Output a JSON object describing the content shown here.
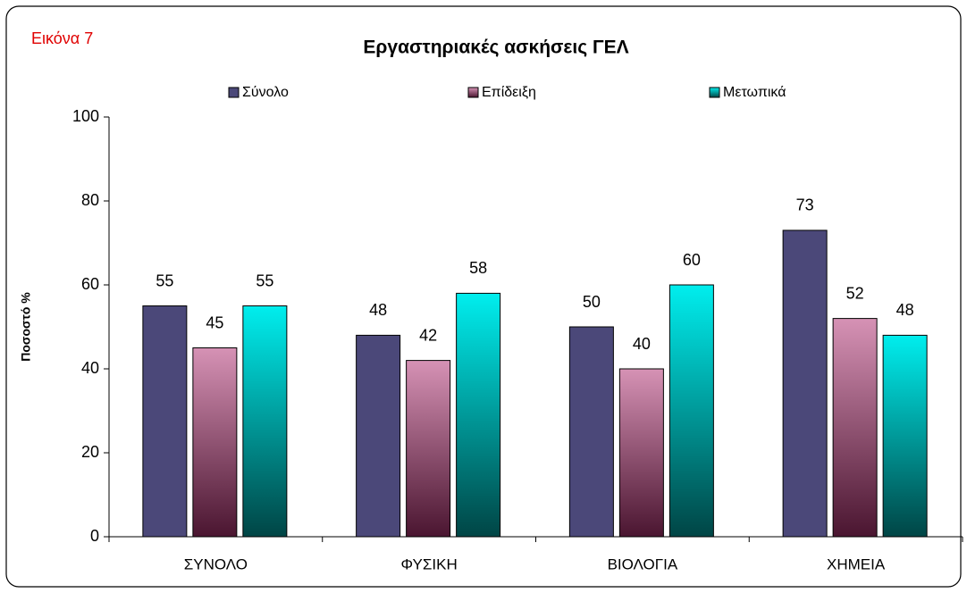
{
  "chart_data": {
    "type": "bar",
    "label": "Εικόνα 7",
    "title": "Εργαστηριακές ασκήσεις ΓΕΛ",
    "ylabel": "Ποσοστό %",
    "categories": [
      "ΣΥΝΟΛΟ",
      "ΦΥΣΙΚΗ",
      "ΒΙΟΛΟΓΙΑ",
      "ΧΗΜΕΙΑ"
    ],
    "series": [
      {
        "name": "Σύνολο",
        "color": "#4b4879",
        "values": [
          55,
          48,
          50,
          73
        ]
      },
      {
        "name": "Επίδειξη",
        "color": "#d692b5",
        "color_bottom": "#4a1530",
        "values": [
          45,
          42,
          40,
          52
        ]
      },
      {
        "name": "Μετωπικά",
        "color": "#00eeee",
        "color_bottom": "#004545",
        "values": [
          55,
          58,
          60,
          48
        ]
      }
    ],
    "ylim": [
      0,
      100
    ],
    "yticks": [
      0,
      20,
      40,
      60,
      80,
      100
    ],
    "grid": false
  }
}
